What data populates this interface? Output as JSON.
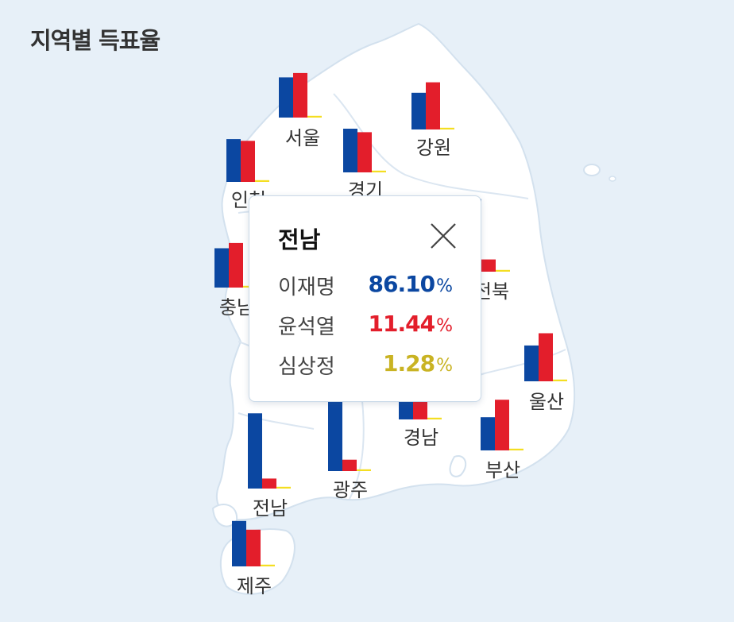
{
  "page": {
    "title": "지역별 득표율"
  },
  "chart_data": {
    "type": "bar",
    "series": [
      {
        "name": "이재명",
        "color": "#0b47a1"
      },
      {
        "name": "윤석열",
        "color": "#e31e2b"
      },
      {
        "name": "심상정",
        "color": "#f4de22"
      }
    ],
    "regions": [
      {
        "name": "서울",
        "values": [
          46,
          51,
          2
        ]
      },
      {
        "name": "강원",
        "values": [
          42,
          54,
          2
        ]
      },
      {
        "name": "경기",
        "values": [
          50,
          46,
          2
        ]
      },
      {
        "name": "인천",
        "values": [
          49,
          47,
          2
        ]
      },
      {
        "name": "충남",
        "values": [
          45,
          51,
          2
        ]
      },
      {
        "name": "전북",
        "values": [
          83,
          14,
          2
        ]
      },
      {
        "name": "울산",
        "values": [
          41,
          55,
          2
        ]
      },
      {
        "name": "경남",
        "values": [
          37,
          58,
          2
        ]
      },
      {
        "name": "부산",
        "values": [
          38,
          58,
          2
        ]
      },
      {
        "name": "광주",
        "values": [
          85,
          13,
          2
        ]
      },
      {
        "name": "전남",
        "values": [
          86.1,
          11.44,
          1.28
        ]
      },
      {
        "name": "제주",
        "values": [
          52,
          42,
          2
        ]
      }
    ]
  },
  "popup": {
    "region": "전남",
    "unit": "%",
    "rows": [
      {
        "name": "이재명",
        "value": "86.10",
        "color": "#0b47a1"
      },
      {
        "name": "윤석열",
        "value": "11.44",
        "color": "#e31e2b"
      },
      {
        "name": "심상정",
        "value": "1.28",
        "color": "#c9b323"
      }
    ]
  }
}
